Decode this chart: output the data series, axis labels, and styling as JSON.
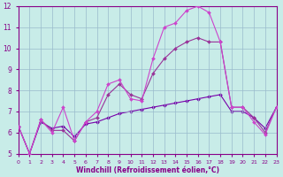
{
  "xlabel": "Windchill (Refroidissement éolien,°C)",
  "background_color": "#c8ece8",
  "grid_color": "#99bbcc",
  "x_hours": [
    0,
    1,
    2,
    3,
    4,
    5,
    6,
    7,
    8,
    9,
    10,
    11,
    12,
    13,
    14,
    15,
    16,
    17,
    18,
    19,
    20,
    21,
    22,
    23
  ],
  "series1": [
    6.3,
    5.0,
    6.6,
    6.0,
    7.2,
    5.6,
    6.5,
    7.0,
    8.3,
    8.5,
    7.6,
    7.5,
    9.5,
    11.0,
    11.2,
    11.8,
    12.0,
    11.7,
    10.3,
    7.2,
    7.2,
    6.5,
    5.9,
    7.2
  ],
  "series2": [
    6.3,
    5.0,
    6.6,
    6.1,
    6.1,
    5.6,
    6.5,
    6.7,
    7.8,
    8.3,
    7.8,
    7.6,
    8.8,
    9.5,
    10.0,
    10.3,
    10.5,
    10.3,
    10.3,
    7.2,
    7.2,
    6.7,
    6.0,
    7.2
  ],
  "series3": [
    6.3,
    5.0,
    6.5,
    6.2,
    6.3,
    5.8,
    6.4,
    6.5,
    6.7,
    6.9,
    7.0,
    7.1,
    7.2,
    7.3,
    7.4,
    7.5,
    7.6,
    7.7,
    7.8,
    7.0,
    7.0,
    6.7,
    6.2,
    7.2
  ],
  "line_color1": "#cc44cc",
  "line_color2": "#993399",
  "line_color3": "#7700aa",
  "xlim": [
    0,
    23
  ],
  "ylim": [
    5,
    12
  ],
  "xticks": [
    0,
    1,
    2,
    3,
    4,
    5,
    6,
    7,
    8,
    9,
    10,
    11,
    12,
    13,
    14,
    15,
    16,
    17,
    18,
    19,
    20,
    21,
    22,
    23
  ],
  "yticks": [
    5,
    6,
    7,
    8,
    9,
    10,
    11,
    12
  ],
  "xlabel_color": "#880088",
  "tick_color": "#880088",
  "xlabel_fontsize": 5.5,
  "ytick_fontsize": 5.5,
  "xtick_fontsize": 4.5,
  "linewidth": 0.8,
  "markersize": 2.0
}
